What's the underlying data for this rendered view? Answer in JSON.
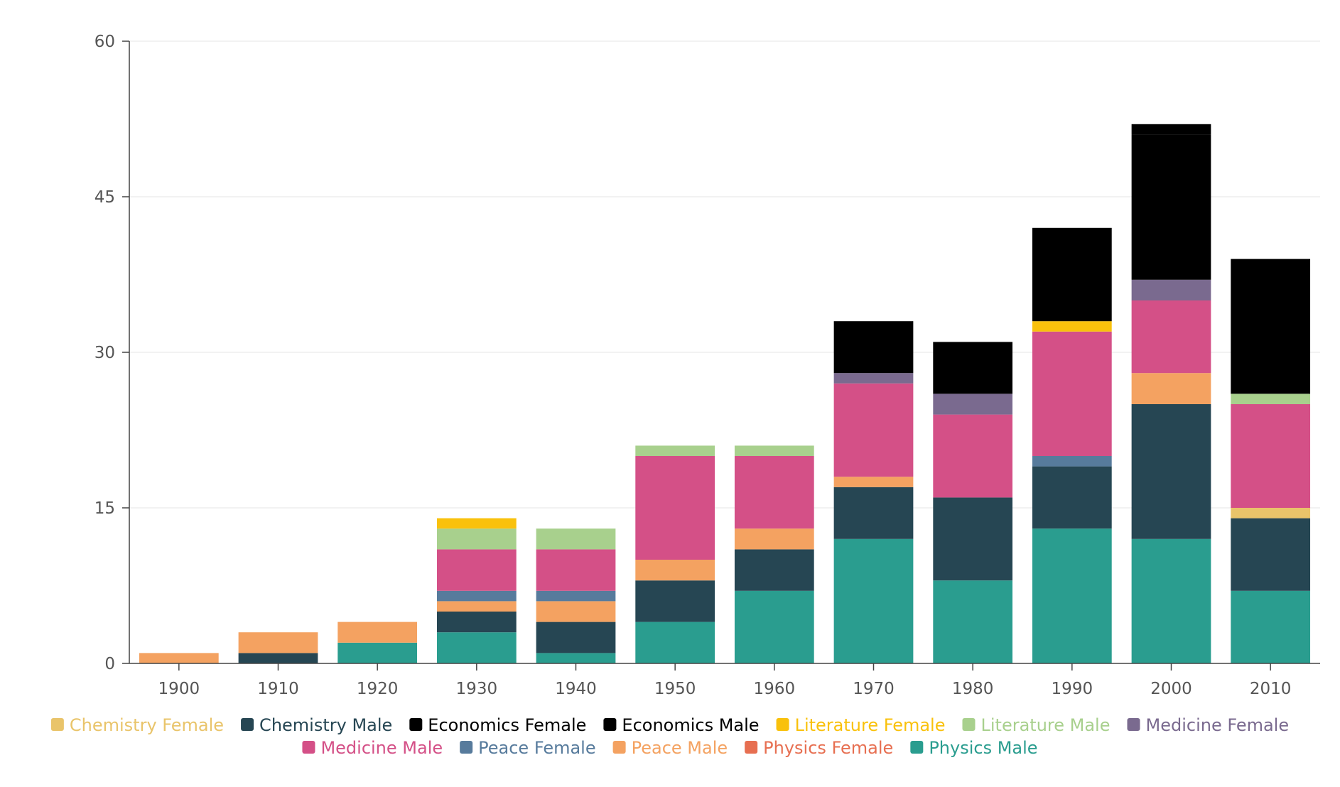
{
  "chart_data": {
    "type": "bar",
    "stacked": true,
    "categories": [
      "1900",
      "1910",
      "1920",
      "1930",
      "1940",
      "1950",
      "1960",
      "1970",
      "1980",
      "1990",
      "2000",
      "2010"
    ],
    "ylim": [
      0,
      60
    ],
    "yticks": [
      0,
      15,
      30,
      45,
      60
    ],
    "grid": true,
    "legend_position": "bottom",
    "series": [
      {
        "name": "Physics Male",
        "color": "#2a9d8f",
        "values": [
          0,
          0,
          2,
          3,
          1,
          4,
          7,
          12,
          8,
          13,
          12,
          7
        ]
      },
      {
        "name": "Physics Female",
        "color": "#e76f51",
        "values": [
          0,
          0,
          0,
          0,
          0,
          0,
          0,
          0,
          0,
          0,
          0,
          0
        ]
      },
      {
        "name": "Chemistry Male",
        "color": "#264653",
        "values": [
          0,
          1,
          0,
          2,
          3,
          4,
          4,
          5,
          8,
          6,
          13,
          7
        ]
      },
      {
        "name": "Chemistry Female",
        "color": "#e9c46a",
        "values": [
          0,
          0,
          0,
          0,
          0,
          0,
          0,
          0,
          0,
          0,
          0,
          1
        ]
      },
      {
        "name": "Peace Male",
        "color": "#f4a261",
        "values": [
          1,
          2,
          2,
          1,
          2,
          2,
          2,
          1,
          0,
          0,
          3,
          0
        ]
      },
      {
        "name": "Peace Female",
        "color": "#577b9c",
        "values": [
          0,
          0,
          0,
          1,
          1,
          0,
          0,
          0,
          0,
          1,
          0,
          0
        ]
      },
      {
        "name": "Medicine Male",
        "color": "#d45087",
        "values": [
          0,
          0,
          0,
          4,
          4,
          10,
          7,
          9,
          8,
          12,
          7,
          10
        ]
      },
      {
        "name": "Medicine Female",
        "color": "#7a6a8f",
        "values": [
          0,
          0,
          0,
          0,
          0,
          0,
          0,
          1,
          2,
          0,
          2,
          0
        ]
      },
      {
        "name": "Literature Male",
        "color": "#a8d08d",
        "values": [
          0,
          0,
          0,
          2,
          2,
          1,
          1,
          0,
          0,
          0,
          0,
          1
        ]
      },
      {
        "name": "Literature Female",
        "color": "#f9c10c",
        "values": [
          0,
          0,
          0,
          1,
          0,
          0,
          0,
          0,
          0,
          1,
          0,
          0
        ]
      },
      {
        "name": "Economics Male",
        "color": "#000000",
        "values": [
          0,
          0,
          0,
          0,
          0,
          0,
          0,
          5,
          5,
          9,
          14,
          13
        ]
      },
      {
        "name": "Economics Female",
        "color": "#000000",
        "values": [
          0,
          0,
          0,
          0,
          0,
          0,
          0,
          0,
          0,
          0,
          1,
          0
        ]
      }
    ],
    "legend": [
      {
        "name": "Chemistry Female",
        "color": "#e9c46a"
      },
      {
        "name": "Chemistry Male",
        "color": "#264653"
      },
      {
        "name": "Economics Female",
        "color": "#000000"
      },
      {
        "name": "Economics Male",
        "color": "#000000"
      },
      {
        "name": "Literature Female",
        "color": "#f9c10c"
      },
      {
        "name": "Literature Male",
        "color": "#a8d08d"
      },
      {
        "name": "Medicine Female",
        "color": "#7a6a8f"
      },
      {
        "name": "Medicine Male",
        "color": "#d45087"
      },
      {
        "name": "Peace Female",
        "color": "#577b9c"
      },
      {
        "name": "Peace Male",
        "color": "#f4a261"
      },
      {
        "name": "Physics Female",
        "color": "#e76f51"
      },
      {
        "name": "Physics Male",
        "color": "#2a9d8f"
      }
    ],
    "legend_rows": [
      7,
      5
    ]
  }
}
